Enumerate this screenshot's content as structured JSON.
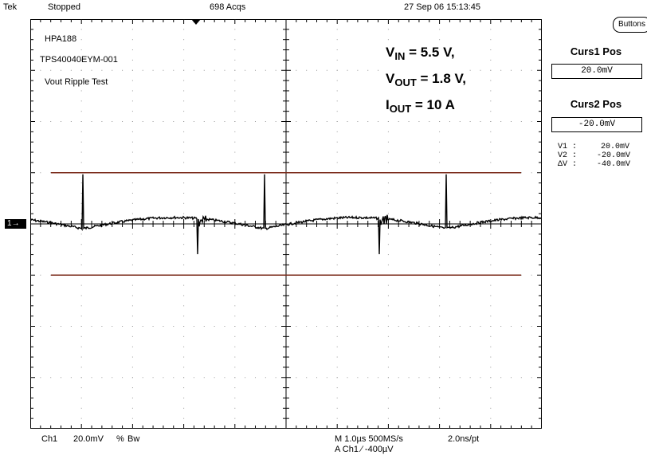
{
  "status_bar": {
    "brand": "Tek",
    "run_state": "Stopped",
    "acquisitions": "698 Acqs",
    "datetime": "27 Sep 06 15:13:45"
  },
  "waveform_labels": [
    "HPA188",
    "TPS40040EYM-001",
    "Vout Ripple Test"
  ],
  "conditions": {
    "vin_prefix": "V",
    "vin_sub": "IN",
    "vin_value": " = 5.5 V,",
    "vout_prefix": "V",
    "vout_sub": "OUT",
    "vout_value": " = 1.8 V,",
    "iout_prefix": "I",
    "iout_sub": "OUT",
    "iout_value": " = 10 A"
  },
  "side_panel": {
    "buttons_label": "Buttons",
    "curs1_label": "Curs1 Pos",
    "curs1_value": "20.0mV",
    "curs2_label": "Curs2 Pos",
    "curs2_value": "-20.0mV",
    "readouts": [
      {
        "name": "V1 :",
        "value": "20.0mV"
      },
      {
        "name": "V2 :",
        "value": "-20.0mV"
      },
      {
        "name": "ΔV :",
        "value": "-40.0mV"
      }
    ]
  },
  "channel_marker": "1",
  "bottom_bar": {
    "channel": "Ch1",
    "scale": "20.0mV",
    "coupling_symbol": "%",
    "bw_label": "Bw",
    "timebase": "M 1.0µs 500MS/s",
    "resolution": "2.0ns/pt",
    "trigger": "A  Ch1  ⁄  -400µV"
  },
  "colors": {
    "trace": "#000000",
    "cursor": "#7a2a1a",
    "grid": "#9a9a9a"
  },
  "scope": {
    "volts_per_div": 20,
    "time_per_div_us": 1,
    "cursor1_mv": 20,
    "cursor2_mv": -20
  }
}
